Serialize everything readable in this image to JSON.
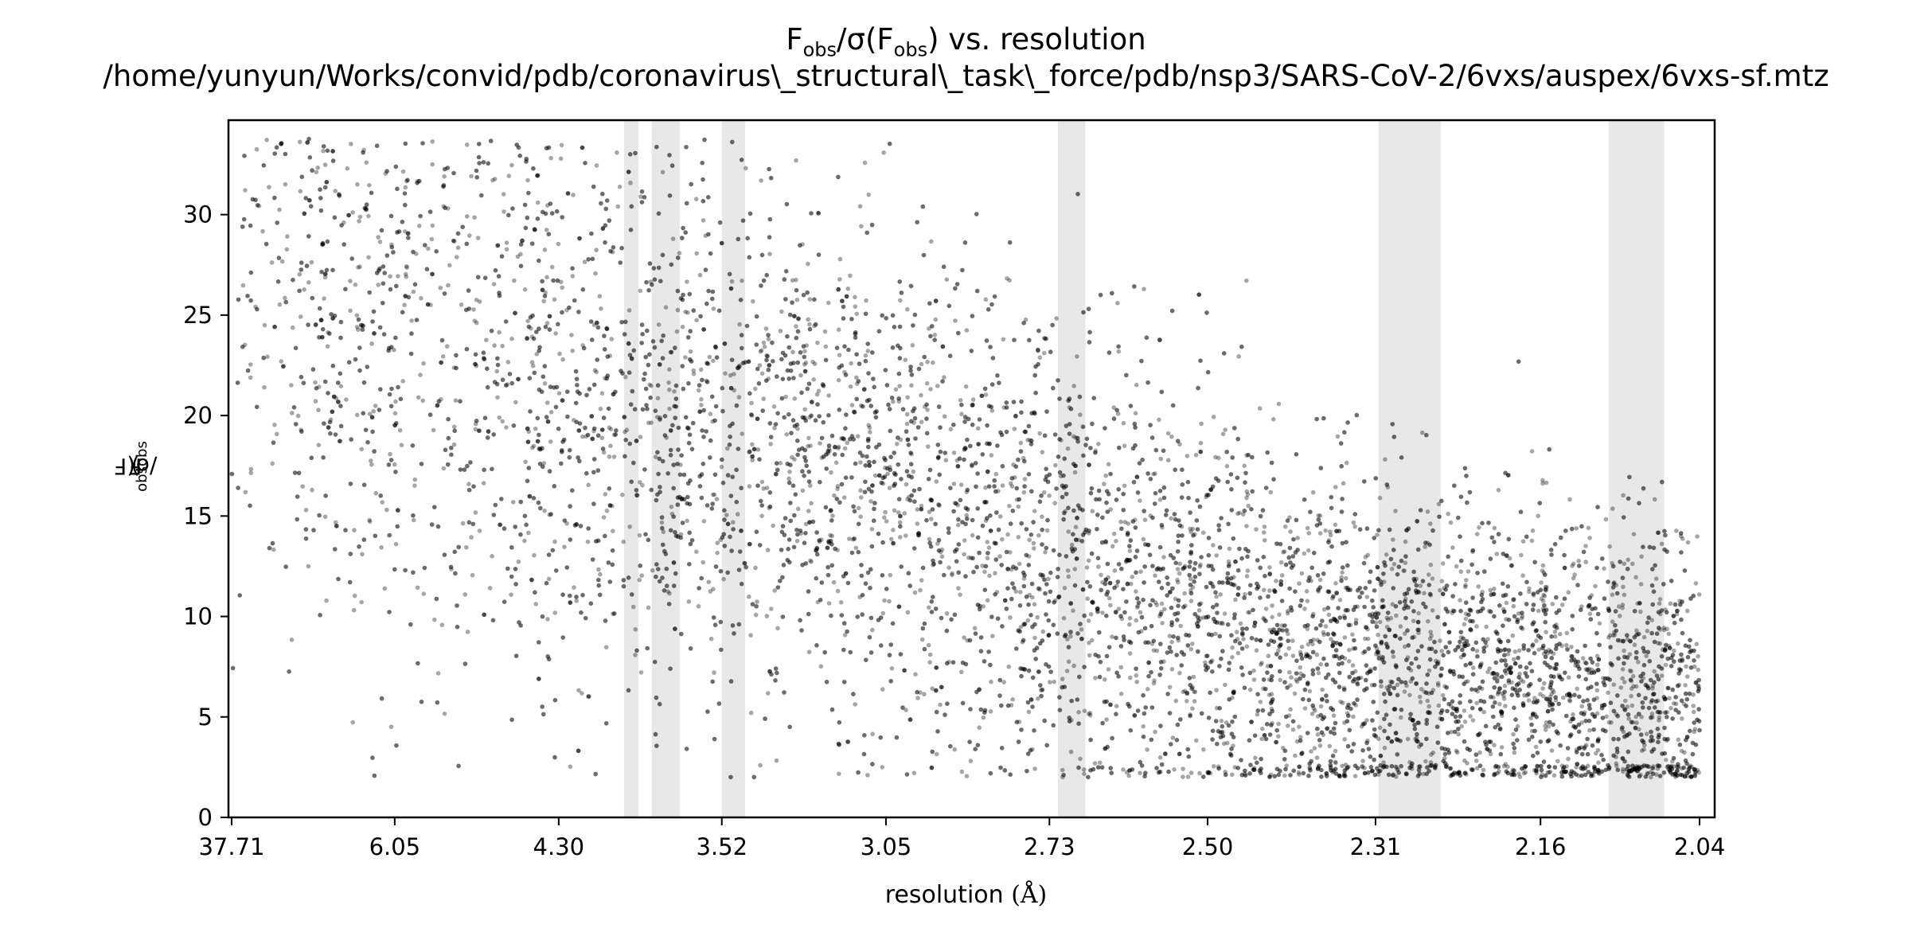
{
  "chart_data": {
    "type": "scatter",
    "title_line1_prefix": "F",
    "title_line1_sub1": "obs",
    "title_line1_mid": "/σ(F",
    "title_line1_sub2": "obs",
    "title_line1_suffix": ") vs. resolution",
    "title_line2": "/home/yunyun/Works/convid/pdb/coronavirus\\_structural\\_task\\_force/pdb/nsp3/SARS-CoV-2/6vxs/auspex/6vxs-sf.mtz",
    "xlabel_text": "resolution ",
    "xlabel_unit": "(Å)",
    "ylabel_prefix": "F",
    "ylabel_sub1": "obs",
    "ylabel_mid": "/σ(F",
    "ylabel_sub2": "obs",
    "ylabel_suffix": ")",
    "x_axis_note": "x axis is 1/d² scaled; tick labels show resolution d in Å",
    "x_ticks": [
      "37.71",
      "6.05",
      "4.30",
      "3.52",
      "3.05",
      "2.73",
      "2.50",
      "2.31",
      "2.16",
      "2.04"
    ],
    "xlim": [
      37.71,
      2.04
    ],
    "y_ticks": [
      "0",
      "5",
      "10",
      "15",
      "20",
      "25",
      "30"
    ],
    "ylim": [
      0,
      34.7
    ],
    "grid": false,
    "marker_color": "#000000",
    "marker_alpha": 0.35,
    "band_color": "#e8e8e8",
    "ice_ring_bands_resolution": [
      [
        3.93,
        3.86
      ],
      [
        3.8,
        3.68
      ],
      [
        3.52,
        3.44
      ],
      [
        2.716,
        2.672
      ],
      [
        2.307,
        2.247
      ],
      [
        2.106,
        2.065
      ]
    ],
    "density_profile": [
      {
        "resolution": 37.71,
        "mean": 25,
        "spread": 7
      },
      {
        "resolution": 6.05,
        "mean": 23,
        "spread": 8
      },
      {
        "resolution": 4.3,
        "mean": 21,
        "spread": 8
      },
      {
        "resolution": 3.52,
        "mean": 19,
        "spread": 7
      },
      {
        "resolution": 3.05,
        "mean": 16,
        "spread": 6
      },
      {
        "resolution": 2.73,
        "mean": 13,
        "spread": 6
      },
      {
        "resolution": 2.5,
        "mean": 10,
        "spread": 5
      },
      {
        "resolution": 2.31,
        "mean": 8,
        "spread": 4.5
      },
      {
        "resolution": 2.16,
        "mean": 7,
        "spread": 4
      },
      {
        "resolution": 2.04,
        "mean": 6,
        "spread": 4
      }
    ],
    "point_floor": 2.0,
    "approx_point_count": 9000
  }
}
